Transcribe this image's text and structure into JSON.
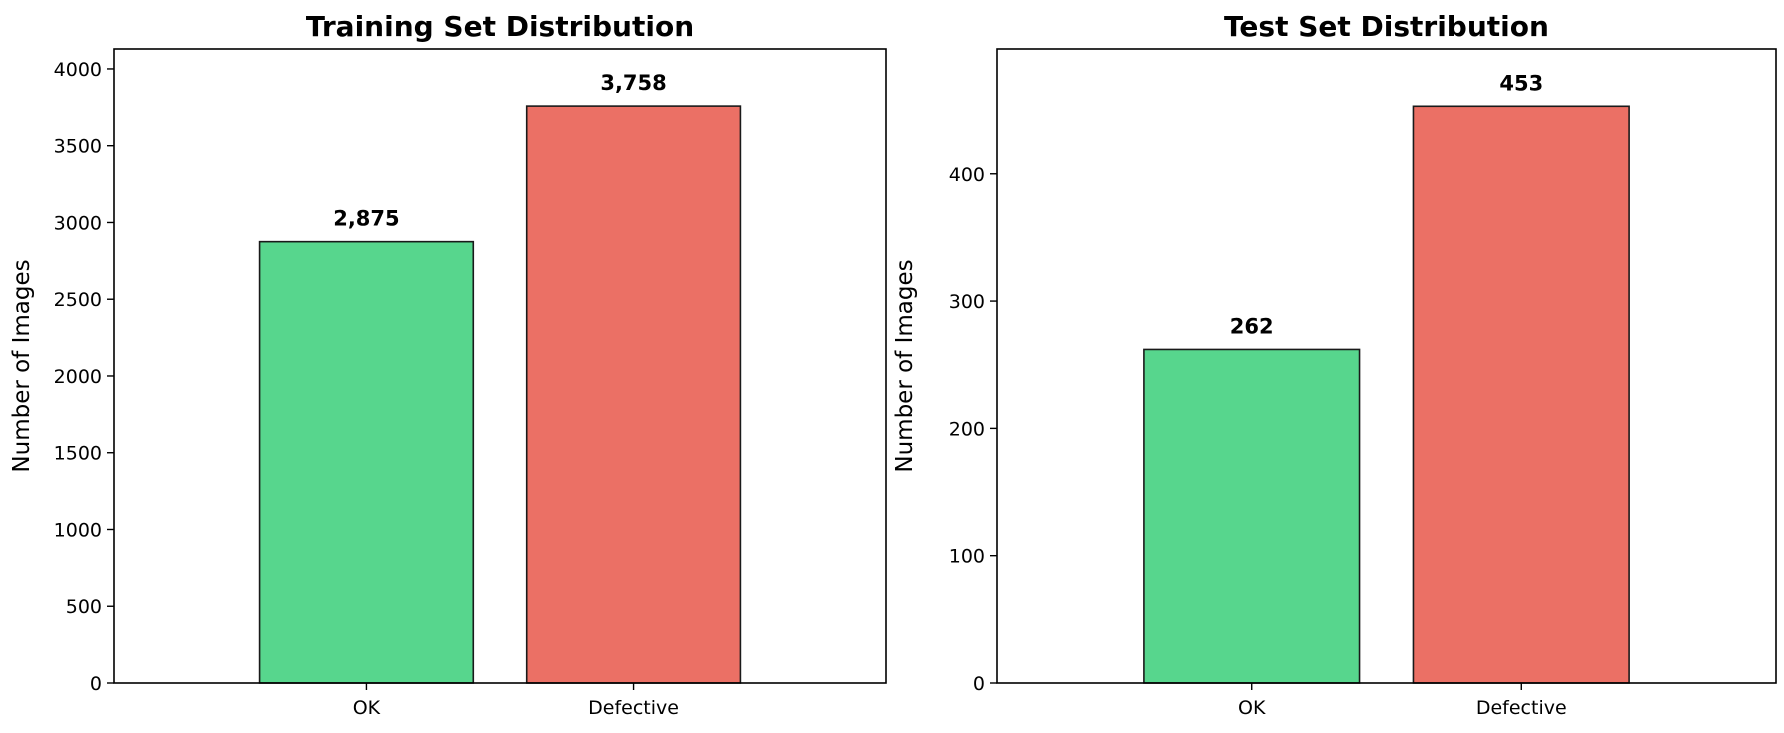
{
  "chart_data": [
    {
      "type": "bar",
      "title": "Training Set Distribution",
      "xlabel": "",
      "ylabel": "Number of Images",
      "categories": [
        "OK",
        "Defective"
      ],
      "values": [
        2875,
        3758
      ],
      "value_labels": [
        "2,875",
        "3,758"
      ],
      "colors": [
        "#57d68d",
        "#eb7065"
      ],
      "ylim": [
        0,
        4130
      ],
      "yticks": [
        0,
        500,
        1000,
        1500,
        2000,
        2500,
        3000,
        3500,
        4000
      ],
      "grid": false
    },
    {
      "type": "bar",
      "title": "Test Set Distribution",
      "xlabel": "",
      "ylabel": "Number of Images",
      "categories": [
        "OK",
        "Defective"
      ],
      "values": [
        262,
        453
      ],
      "value_labels": [
        "262",
        "453"
      ],
      "colors": [
        "#57d68d",
        "#eb7065"
      ],
      "ylim": [
        0,
        498
      ],
      "yticks": [
        0,
        100,
        200,
        300,
        400
      ],
      "grid": false
    }
  ]
}
